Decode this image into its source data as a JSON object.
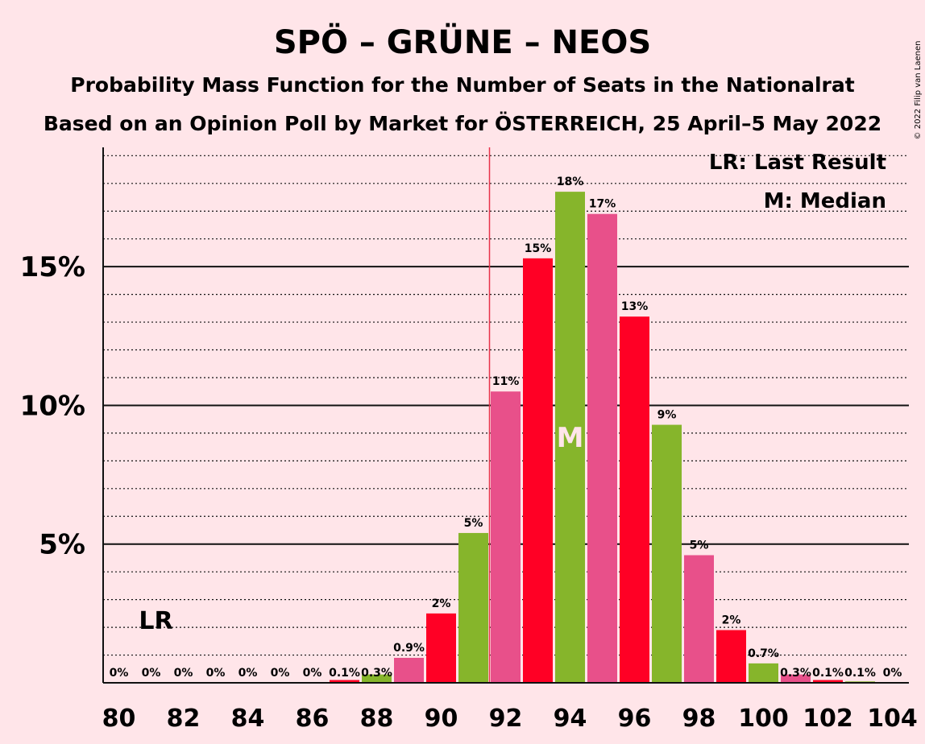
{
  "chart_data": {
    "type": "bar",
    "title": "SPÖ – GRÜNE – NEOS",
    "subtitle1": "Probability Mass Function for the Number of Seats in the Nationalrat",
    "subtitle2": "Based on an Opinion Poll by Market for ÖSTERREICH, 25 April–5 May 2022",
    "copyright": "© 2022 Filip van Laenen",
    "legend": {
      "lr": "LR: Last Result",
      "m": "M: Median",
      "placement": "top-right"
    },
    "markers": {
      "last_result_seat": 81,
      "last_result_label": "LR",
      "median_seat": 94,
      "median_label": "M",
      "majority_line_seat": 91.5
    },
    "x": [
      80,
      81,
      82,
      83,
      84,
      85,
      86,
      87,
      88,
      89,
      90,
      91,
      92,
      93,
      94,
      95,
      96,
      97,
      98,
      99,
      100,
      101,
      102,
      103,
      104
    ],
    "values": [
      0,
      0,
      0,
      0,
      0,
      0,
      0,
      0.1,
      0.3,
      0.9,
      2.5,
      5.4,
      10.5,
      15.3,
      17.7,
      16.9,
      13.2,
      9.3,
      4.6,
      1.9,
      0.7,
      0.3,
      0.1,
      0.05,
      0
    ],
    "labels": [
      "0%",
      "0%",
      "0%",
      "0%",
      "0%",
      "0%",
      "0%",
      "0.1%",
      "0.3%",
      "0.9%",
      "2%",
      "5%",
      "11%",
      "15%",
      "18%",
      "17%",
      "13%",
      "9%",
      "5%",
      "2%",
      "0.7%",
      "0.3%",
      "0.1%",
      "0.1%",
      "0%"
    ],
    "xticks": [
      80,
      82,
      84,
      86,
      88,
      90,
      92,
      94,
      96,
      98,
      100,
      102,
      104
    ],
    "yticks": [
      5,
      10,
      15
    ],
    "ytick_labels": [
      "5%",
      "10%",
      "15%"
    ],
    "ylim": [
      0,
      19.3
    ],
    "colors": {
      "palette": [
        "#E8508A",
        "#FF0025",
        "#86B52B"
      ],
      "majority_line": "#E8324A",
      "background": "#FFE5E9",
      "text": "#1a0a0f"
    }
  }
}
